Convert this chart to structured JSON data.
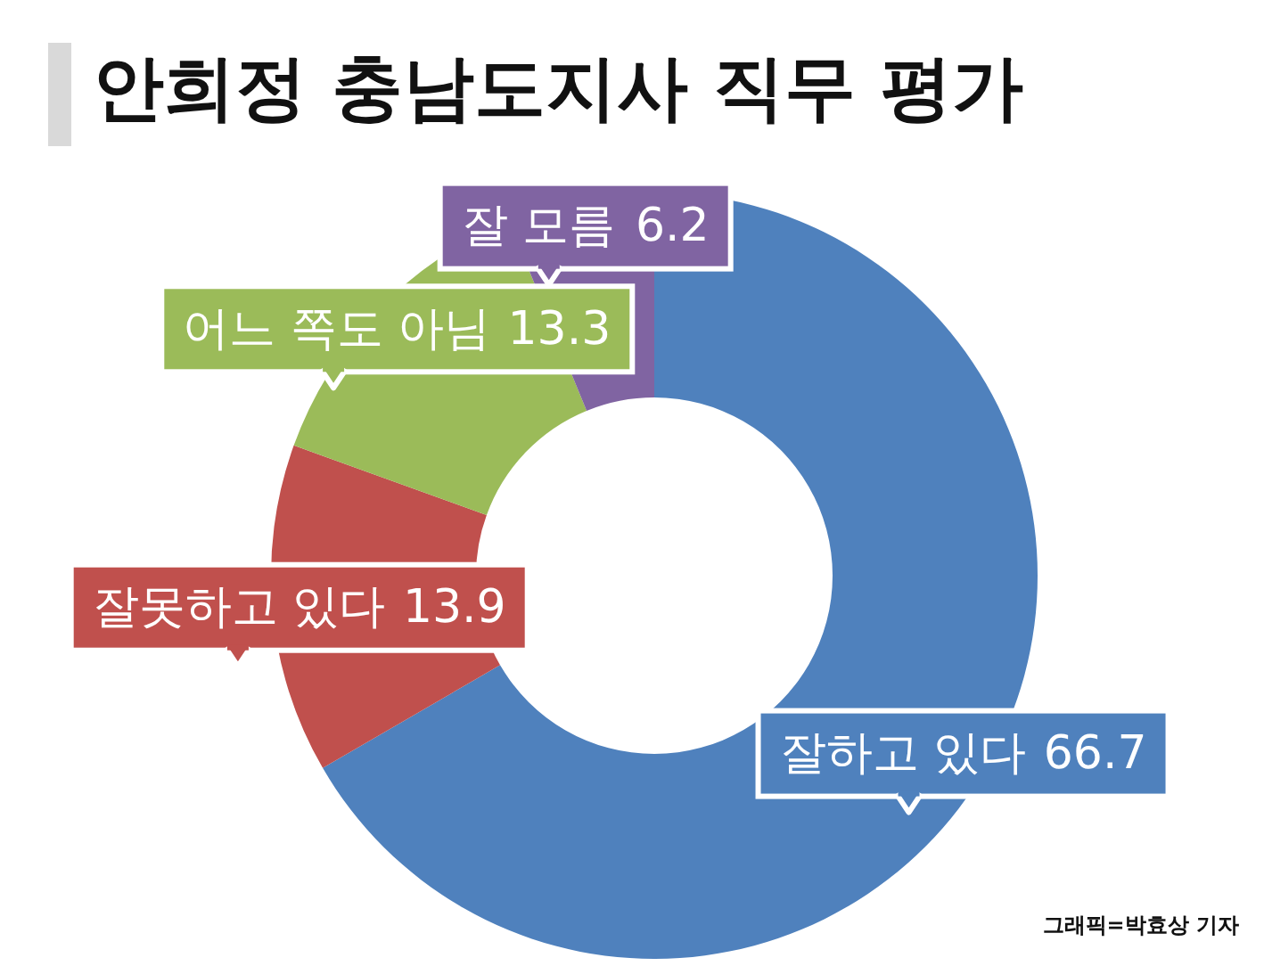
{
  "chart_data": {
    "type": "donut",
    "title": "안희정 충남도지사 직무 평가",
    "categories": [
      "잘하고 있다",
      "잘못하고 있다",
      "어느 쪽도 아님",
      "잘 모름"
    ],
    "values": [
      66.7,
      13.9,
      13.3,
      6.2
    ],
    "colors": [
      "#4f81bd",
      "#c0504d",
      "#9bbb59",
      "#8064a2"
    ],
    "data_labels": true,
    "annotations": [
      "그래픽=박효상 기자"
    ]
  }
}
